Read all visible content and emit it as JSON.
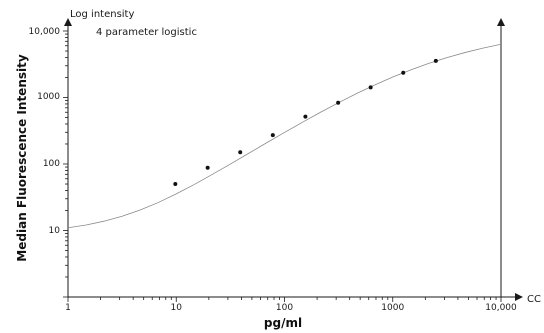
{
  "chart_data": {
    "type": "scatter",
    "title": "",
    "annotation": "4 parameter logistic",
    "top_label": "Log intensity",
    "xlabel": "pg/ml",
    "ylabel": "Median Fluorescence Intensity",
    "x_end_label": "CC",
    "xscale": "log",
    "yscale": "log",
    "xlim": [
      1,
      10000
    ],
    "ylim": [
      1,
      10000
    ],
    "x_ticks": [
      "1",
      "10",
      "100",
      "1000",
      "10,000"
    ],
    "y_ticks": [
      "10",
      "100",
      "1000",
      "10,000"
    ],
    "grid": false,
    "series": [
      {
        "type": "scatter",
        "x": [
          9.8,
          19.5,
          39,
          78,
          156,
          313,
          625,
          1250,
          2500
        ],
        "y": [
          50,
          88,
          150,
          272,
          515,
          835,
          1420,
          2360,
          3550
        ]
      },
      {
        "type": "curve",
        "x": [
          1,
          1.47,
          2.15,
          3.16,
          4.64,
          6.81,
          10,
          14.7,
          21.5,
          31.6,
          46.4,
          68.1,
          100,
          147,
          215,
          316,
          464,
          681,
          1000,
          1470,
          2150,
          3160,
          4640,
          6810,
          10000
        ],
        "y": [
          11,
          12.1,
          13.8,
          16.4,
          20.3,
          26.3,
          35.5,
          49.3,
          69.7,
          99.8,
          144,
          208,
          298,
          425,
          600,
          836,
          1147,
          1543,
          2030,
          2606,
          3260,
          3980,
          4740,
          5530,
          6320
        ]
      }
    ]
  }
}
